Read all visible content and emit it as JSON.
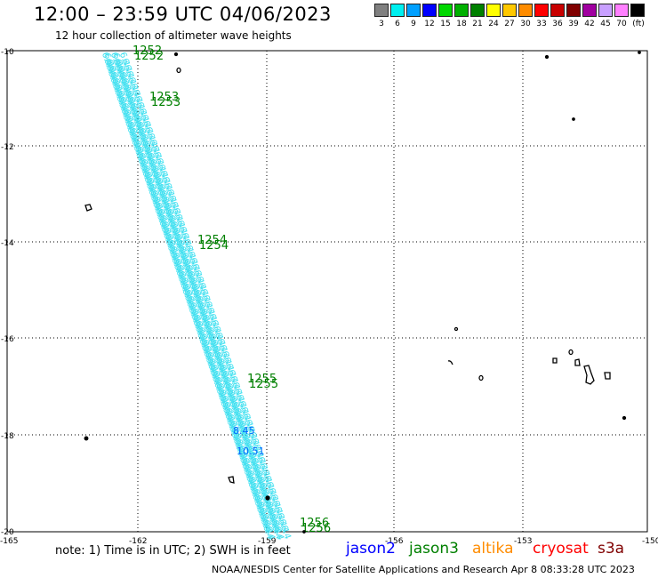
{
  "header": {
    "title": "12:00 – 23:59 UTC 04/06/2023",
    "subtitle": "12 hour collection of altimeter wave heights"
  },
  "legend": {
    "unit": "(ft)",
    "items": [
      {
        "label": "3",
        "color": "#808080"
      },
      {
        "label": "6",
        "color": "#00f0f0"
      },
      {
        "label": "9",
        "color": "#00a0ff"
      },
      {
        "label": "12",
        "color": "#0000ff"
      },
      {
        "label": "15",
        "color": "#00d800"
      },
      {
        "label": "18",
        "color": "#00b000"
      },
      {
        "label": "21",
        "color": "#008000"
      },
      {
        "label": "24",
        "color": "#ffff00"
      },
      {
        "label": "27",
        "color": "#ffc800"
      },
      {
        "label": "30",
        "color": "#ff8c00"
      },
      {
        "label": "33",
        "color": "#ff0000"
      },
      {
        "label": "36",
        "color": "#c80000"
      },
      {
        "label": "39",
        "color": "#800000"
      },
      {
        "label": "42",
        "color": "#a000a0"
      },
      {
        "label": "45",
        "color": "#c8a0ff"
      },
      {
        "label": "70",
        "color": "#ff80ff"
      },
      {
        "label": "",
        "color": "#000000"
      }
    ]
  },
  "map": {
    "lon_ticks": [
      "-165",
      "-162",
      "-159",
      "-156",
      "-153",
      "-150"
    ],
    "lat_ticks": [
      "-10",
      "-12",
      "-14",
      "-16",
      "-18",
      "-20"
    ],
    "track_times": [
      "1252",
      "1253",
      "1254",
      "1255",
      "1256"
    ],
    "swh_labels": [
      "8.45",
      "10.51"
    ],
    "track_color": "#40e0f0"
  },
  "footer": {
    "note": "note: 1) Time is in UTC; 2) SWH is in feet",
    "satellites": [
      {
        "name": "jason2",
        "color": "#0000ff"
      },
      {
        "name": "jason3",
        "color": "#008000"
      },
      {
        "name": "altika",
        "color": "#ff8c00"
      },
      {
        "name": "cryosat",
        "color": "#ff0000"
      },
      {
        "name": "s3a",
        "color": "#800000"
      }
    ],
    "credit": "NOAA/NESDIS Center for Satellite Applications and Research   Apr  8 08:33:28 UTC 2023"
  }
}
